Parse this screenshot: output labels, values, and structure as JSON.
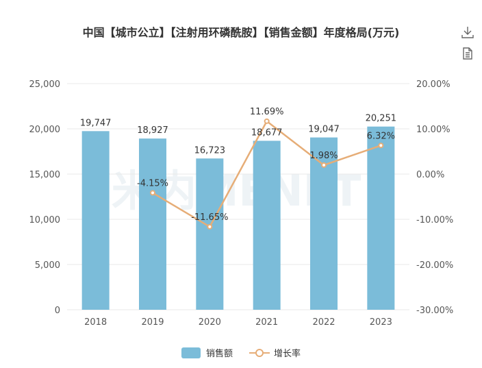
{
  "title": "中国【城市公立】【注射用环磷酰胺】【销售金额】年度格局(万元)",
  "toolbar": {
    "download_icon": "download-icon",
    "data_view_icon": "document-icon"
  },
  "colors": {
    "bar": "#7bbcd9",
    "line": "#e6ad77",
    "grid": "#e8e8e8",
    "axis_text": "#555555"
  },
  "watermark": "米内MENET",
  "chart_data": {
    "type": "bar",
    "categories": [
      "2018",
      "2019",
      "2020",
      "2021",
      "2022",
      "2023"
    ],
    "series": [
      {
        "name": "销售额",
        "type": "bar",
        "axis": "left",
        "values": [
          19747,
          18927,
          16723,
          18677,
          19047,
          20251
        ],
        "labels": [
          "19,747",
          "18,927",
          "16,723",
          "18,677",
          "19,047",
          "20,251"
        ]
      },
      {
        "name": "增长率",
        "type": "line",
        "axis": "right",
        "values": [
          null,
          -4.15,
          -11.65,
          11.69,
          1.98,
          6.32
        ],
        "labels": [
          "",
          "-4.15%",
          "-11.65%",
          "11.69%",
          "1.98%",
          "6.32%"
        ]
      }
    ],
    "y_left": {
      "min": 0,
      "max": 25000,
      "ticks": [
        "0",
        "5,000",
        "10,000",
        "15,000",
        "20,000",
        "25,000"
      ]
    },
    "y_right": {
      "min": -30,
      "max": 20,
      "ticks": [
        "-30.00%",
        "-20.00%",
        "-10.00%",
        "0.00%",
        "10.00%",
        "20.00%"
      ]
    },
    "legend": [
      "销售额",
      "增长率"
    ],
    "legend_position": "bottom"
  }
}
